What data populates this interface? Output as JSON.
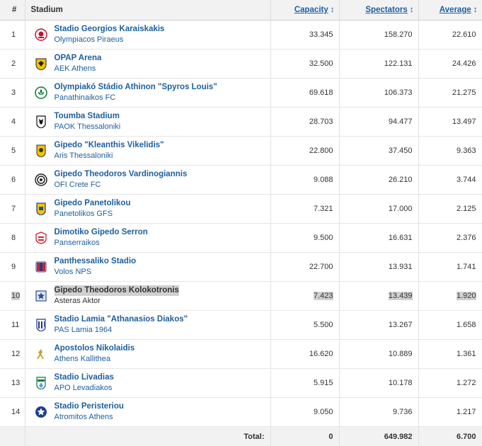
{
  "header": {
    "num": "#",
    "stadium": "Stadium",
    "capacity": "Capacity",
    "spectators": "Spectators",
    "average": "Average",
    "sort_icon": "↕"
  },
  "rows": [
    {
      "num": "1",
      "stadium": "Stadio Georgios Karaiskakis",
      "club": "Olympiacos Piraeus",
      "capacity": "33.345",
      "spectators": "158.270",
      "average": "22.610",
      "logo": "olympiacos-crest-icon"
    },
    {
      "num": "2",
      "stadium": "OPAP Arena",
      "club": "AEK Athens",
      "capacity": "32.500",
      "spectators": "122.131",
      "average": "24.426",
      "logo": "aek-crest-icon"
    },
    {
      "num": "3",
      "stadium": "Olympiakó Stádio Athinon \"Spyros Louis\"",
      "club": "Panathinaikos FC",
      "capacity": "69.618",
      "spectators": "106.373",
      "average": "21.275",
      "logo": "panathinaikos-crest-icon"
    },
    {
      "num": "4",
      "stadium": "Toumba Stadium",
      "club": "PAOK Thessaloniki",
      "capacity": "28.703",
      "spectators": "94.477",
      "average": "13.497",
      "logo": "paok-crest-icon"
    },
    {
      "num": "5",
      "stadium": "Gipedo \"Kleanthis Vikelidis\"",
      "club": "Aris Thessaloniki",
      "capacity": "22.800",
      "spectators": "37.450",
      "average": "9.363",
      "logo": "aris-crest-icon"
    },
    {
      "num": "6",
      "stadium": "Gipedo Theodoros Vardinogiannis",
      "club": "OFI Crete FC",
      "capacity": "9.088",
      "spectators": "26.210",
      "average": "3.744",
      "logo": "ofi-crest-icon"
    },
    {
      "num": "7",
      "stadium": "Gipedo Panetolikou",
      "club": "Panetolikos GFS",
      "capacity": "7.321",
      "spectators": "17.000",
      "average": "2.125",
      "logo": "panetolikos-crest-icon"
    },
    {
      "num": "8",
      "stadium": "Dimotiko Gipedo Serron",
      "club": "Panserraikos",
      "capacity": "9.500",
      "spectators": "16.631",
      "average": "2.376",
      "logo": "panserraikos-crest-icon"
    },
    {
      "num": "9",
      "stadium": "Panthessaliko Stadio",
      "club": "Volos NPS",
      "capacity": "22.700",
      "spectators": "13.931",
      "average": "1.741",
      "logo": "volos-crest-icon"
    },
    {
      "num": "10",
      "stadium": "Gipedo Theodoros Kolokotronis",
      "club": "Asteras Aktor",
      "capacity": "7.423",
      "spectators": "13.439",
      "average": "1.920",
      "logo": "asteras-crest-icon",
      "highlight": true
    },
    {
      "num": "11",
      "stadium": "Stadio Lamia \"Athanasios Diakos\"",
      "club": "PAS Lamia 1964",
      "capacity": "5.500",
      "spectators": "13.267",
      "average": "1.658",
      "logo": "lamia-crest-icon"
    },
    {
      "num": "12",
      "stadium": "Apostolos Nikolaidis",
      "club": "Athens Kallithea",
      "capacity": "16.620",
      "spectators": "10.889",
      "average": "1.361",
      "logo": "kallithea-crest-icon"
    },
    {
      "num": "13",
      "stadium": "Stadio Livadias",
      "club": "APO Levadiakos",
      "capacity": "5.915",
      "spectators": "10.178",
      "average": "1.272",
      "logo": "levadiakos-crest-icon"
    },
    {
      "num": "14",
      "stadium": "Stadio Peristeriou",
      "club": "Atromitos Athens",
      "capacity": "9.050",
      "spectators": "9.736",
      "average": "1.217",
      "logo": "atromitos-crest-icon"
    }
  ],
  "total": {
    "label": "Total:",
    "capacity": "0",
    "spectators": "649.982",
    "average": "6.700"
  },
  "colors": {
    "link": "#1d5fa0",
    "header_bg": "#f2f2f2",
    "highlight": "#d0d0d0"
  }
}
